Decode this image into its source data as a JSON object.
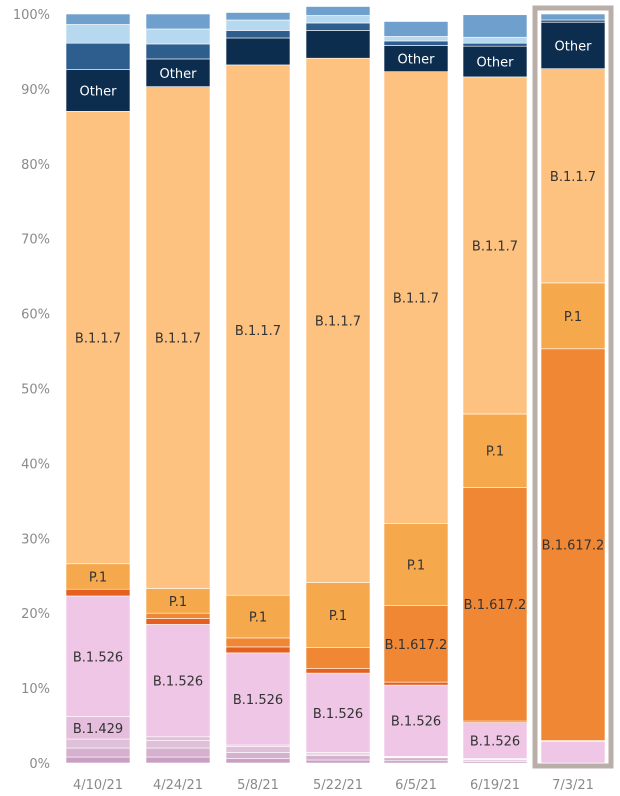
{
  "chart_data": {
    "type": "bar",
    "stacked": true,
    "percent": true,
    "ylim": [
      0,
      100
    ],
    "y_ticks": [
      "0%",
      "10%",
      "20%",
      "30%",
      "40%",
      "50%",
      "60%",
      "70%",
      "80%",
      "90%",
      "100%"
    ],
    "categories": [
      "4/10/21",
      "4/24/21",
      "5/8/21",
      "5/22/21",
      "6/5/21",
      "6/19/21",
      "7/3/21"
    ],
    "highlighted_category": "7/3/21",
    "segment_order_bottom_to_top": [
      "s1",
      "s2",
      "s3",
      "B.1.429",
      "B.1.526",
      "s4",
      "B.1.617.2",
      "P.1",
      "B.1.1.7",
      "Other",
      "s5",
      "s6",
      "s7"
    ],
    "series": [
      {
        "key": "s1",
        "name": "",
        "color": "#c9a0c2",
        "values": [
          0.8,
          0.8,
          0.6,
          0.4,
          0.3,
          0.2,
          0.0
        ]
      },
      {
        "key": "s2",
        "name": "",
        "color": "#d5b0cf",
        "values": [
          1.2,
          1.2,
          0.8,
          0.6,
          0.4,
          0.2,
          0.0
        ]
      },
      {
        "key": "s3",
        "name": "",
        "color": "#dfc0d9",
        "values": [
          1.2,
          1.0,
          0.8,
          0.2,
          0.1,
          0.1,
          0.0
        ]
      },
      {
        "key": "B.1.429",
        "name": "B.1.429",
        "color": "#e6bedd",
        "values": [
          3.0,
          0.5,
          0.2,
          0.2,
          0.1,
          0.1,
          0.0
        ]
      },
      {
        "key": "B.1.526",
        "name": "B.1.526",
        "color": "#f0c6e6",
        "values": [
          16.1,
          15.0,
          12.3,
          10.6,
          9.5,
          4.8,
          2.9
        ]
      },
      {
        "key": "s4",
        "name": "",
        "color": "#e5601e",
        "values": [
          0.9,
          0.8,
          0.8,
          0.6,
          0.4,
          0.2,
          0.1
        ]
      },
      {
        "key": "B.1.617.2",
        "name": "B.1.617.2",
        "color": "#f08735",
        "values": [
          0.0,
          0.7,
          1.2,
          2.8,
          10.2,
          31.2,
          52.3
        ]
      },
      {
        "key": "P.1",
        "name": "P.1",
        "color": "#f5a94c",
        "values": [
          3.4,
          3.3,
          5.7,
          8.7,
          11.0,
          9.8,
          8.8
        ]
      },
      {
        "key": "B.1.1.7",
        "name": "B.1.1.7",
        "color": "#fdc27f",
        "values": [
          60.4,
          67.0,
          70.8,
          70.0,
          60.3,
          45.0,
          28.6
        ]
      },
      {
        "key": "Other",
        "name": "Other",
        "color": "#0d2d4f",
        "values": [
          5.6,
          3.7,
          3.6,
          3.7,
          3.5,
          4.1,
          6.2
        ]
      },
      {
        "key": "s5",
        "name": "",
        "color": "#2e5e8e",
        "values": [
          3.5,
          2.0,
          1.0,
          1.0,
          0.6,
          0.4,
          0.3
        ]
      },
      {
        "key": "s6",
        "name": "",
        "color": "#b7d9f0",
        "values": [
          2.5,
          2.0,
          1.4,
          1.0,
          0.6,
          0.8,
          0.0
        ]
      },
      {
        "key": "s7",
        "name": "",
        "color": "#6f9fcc",
        "values": [
          1.4,
          2.0,
          1.0,
          1.2,
          2.0,
          3.0,
          0.8
        ]
      }
    ],
    "segment_labels": [
      {
        "category": "4/10/21",
        "series": "B.1.429",
        "text": "B.1.429"
      },
      {
        "category": "4/10/21",
        "series": "B.1.526",
        "text": "B.1.526"
      },
      {
        "category": "4/10/21",
        "series": "P.1",
        "text": "P.1"
      },
      {
        "category": "4/10/21",
        "series": "B.1.1.7",
        "text": "B.1.1.7"
      },
      {
        "category": "4/10/21",
        "series": "Other",
        "text": "Other"
      },
      {
        "category": "4/24/21",
        "series": "B.1.526",
        "text": "B.1.526"
      },
      {
        "category": "4/24/21",
        "series": "P.1",
        "text": "P.1"
      },
      {
        "category": "4/24/21",
        "series": "B.1.1.7",
        "text": "B.1.1.7"
      },
      {
        "category": "4/24/21",
        "series": "Other",
        "text": "Other"
      },
      {
        "category": "5/8/21",
        "series": "B.1.526",
        "text": "B.1.526"
      },
      {
        "category": "5/8/21",
        "series": "P.1",
        "text": "P.1"
      },
      {
        "category": "5/8/21",
        "series": "B.1.1.7",
        "text": "B.1.1.7"
      },
      {
        "category": "5/22/21",
        "series": "B.1.526",
        "text": "B.1.526"
      },
      {
        "category": "5/22/21",
        "series": "P.1",
        "text": "P.1"
      },
      {
        "category": "5/22/21",
        "series": "B.1.1.7",
        "text": "B.1.1.7"
      },
      {
        "category": "6/5/21",
        "series": "B.1.526",
        "text": "B.1.526"
      },
      {
        "category": "6/5/21",
        "series": "B.1.617.2",
        "text": "B.1.617.2"
      },
      {
        "category": "6/5/21",
        "series": "P.1",
        "text": "P.1"
      },
      {
        "category": "6/5/21",
        "series": "B.1.1.7",
        "text": "B.1.1.7"
      },
      {
        "category": "6/5/21",
        "series": "Other",
        "text": "Other"
      },
      {
        "category": "6/19/21",
        "series": "B.1.526",
        "text": "B.1.526"
      },
      {
        "category": "6/19/21",
        "series": "B.1.617.2",
        "text": "B.1.617.2"
      },
      {
        "category": "6/19/21",
        "series": "P.1",
        "text": "P.1"
      },
      {
        "category": "6/19/21",
        "series": "B.1.1.7",
        "text": "B.1.1.7"
      },
      {
        "category": "6/19/21",
        "series": "Other",
        "text": "Other"
      },
      {
        "category": "7/3/21",
        "series": "B.1.617.2",
        "text": "B.1.617.2"
      },
      {
        "category": "7/3/21",
        "series": "P.1",
        "text": "P.1"
      },
      {
        "category": "7/3/21",
        "series": "B.1.1.7",
        "text": "B.1.1.7"
      },
      {
        "category": "7/3/21",
        "series": "Other",
        "text": "Other"
      }
    ],
    "grid": false,
    "legend": "none"
  }
}
